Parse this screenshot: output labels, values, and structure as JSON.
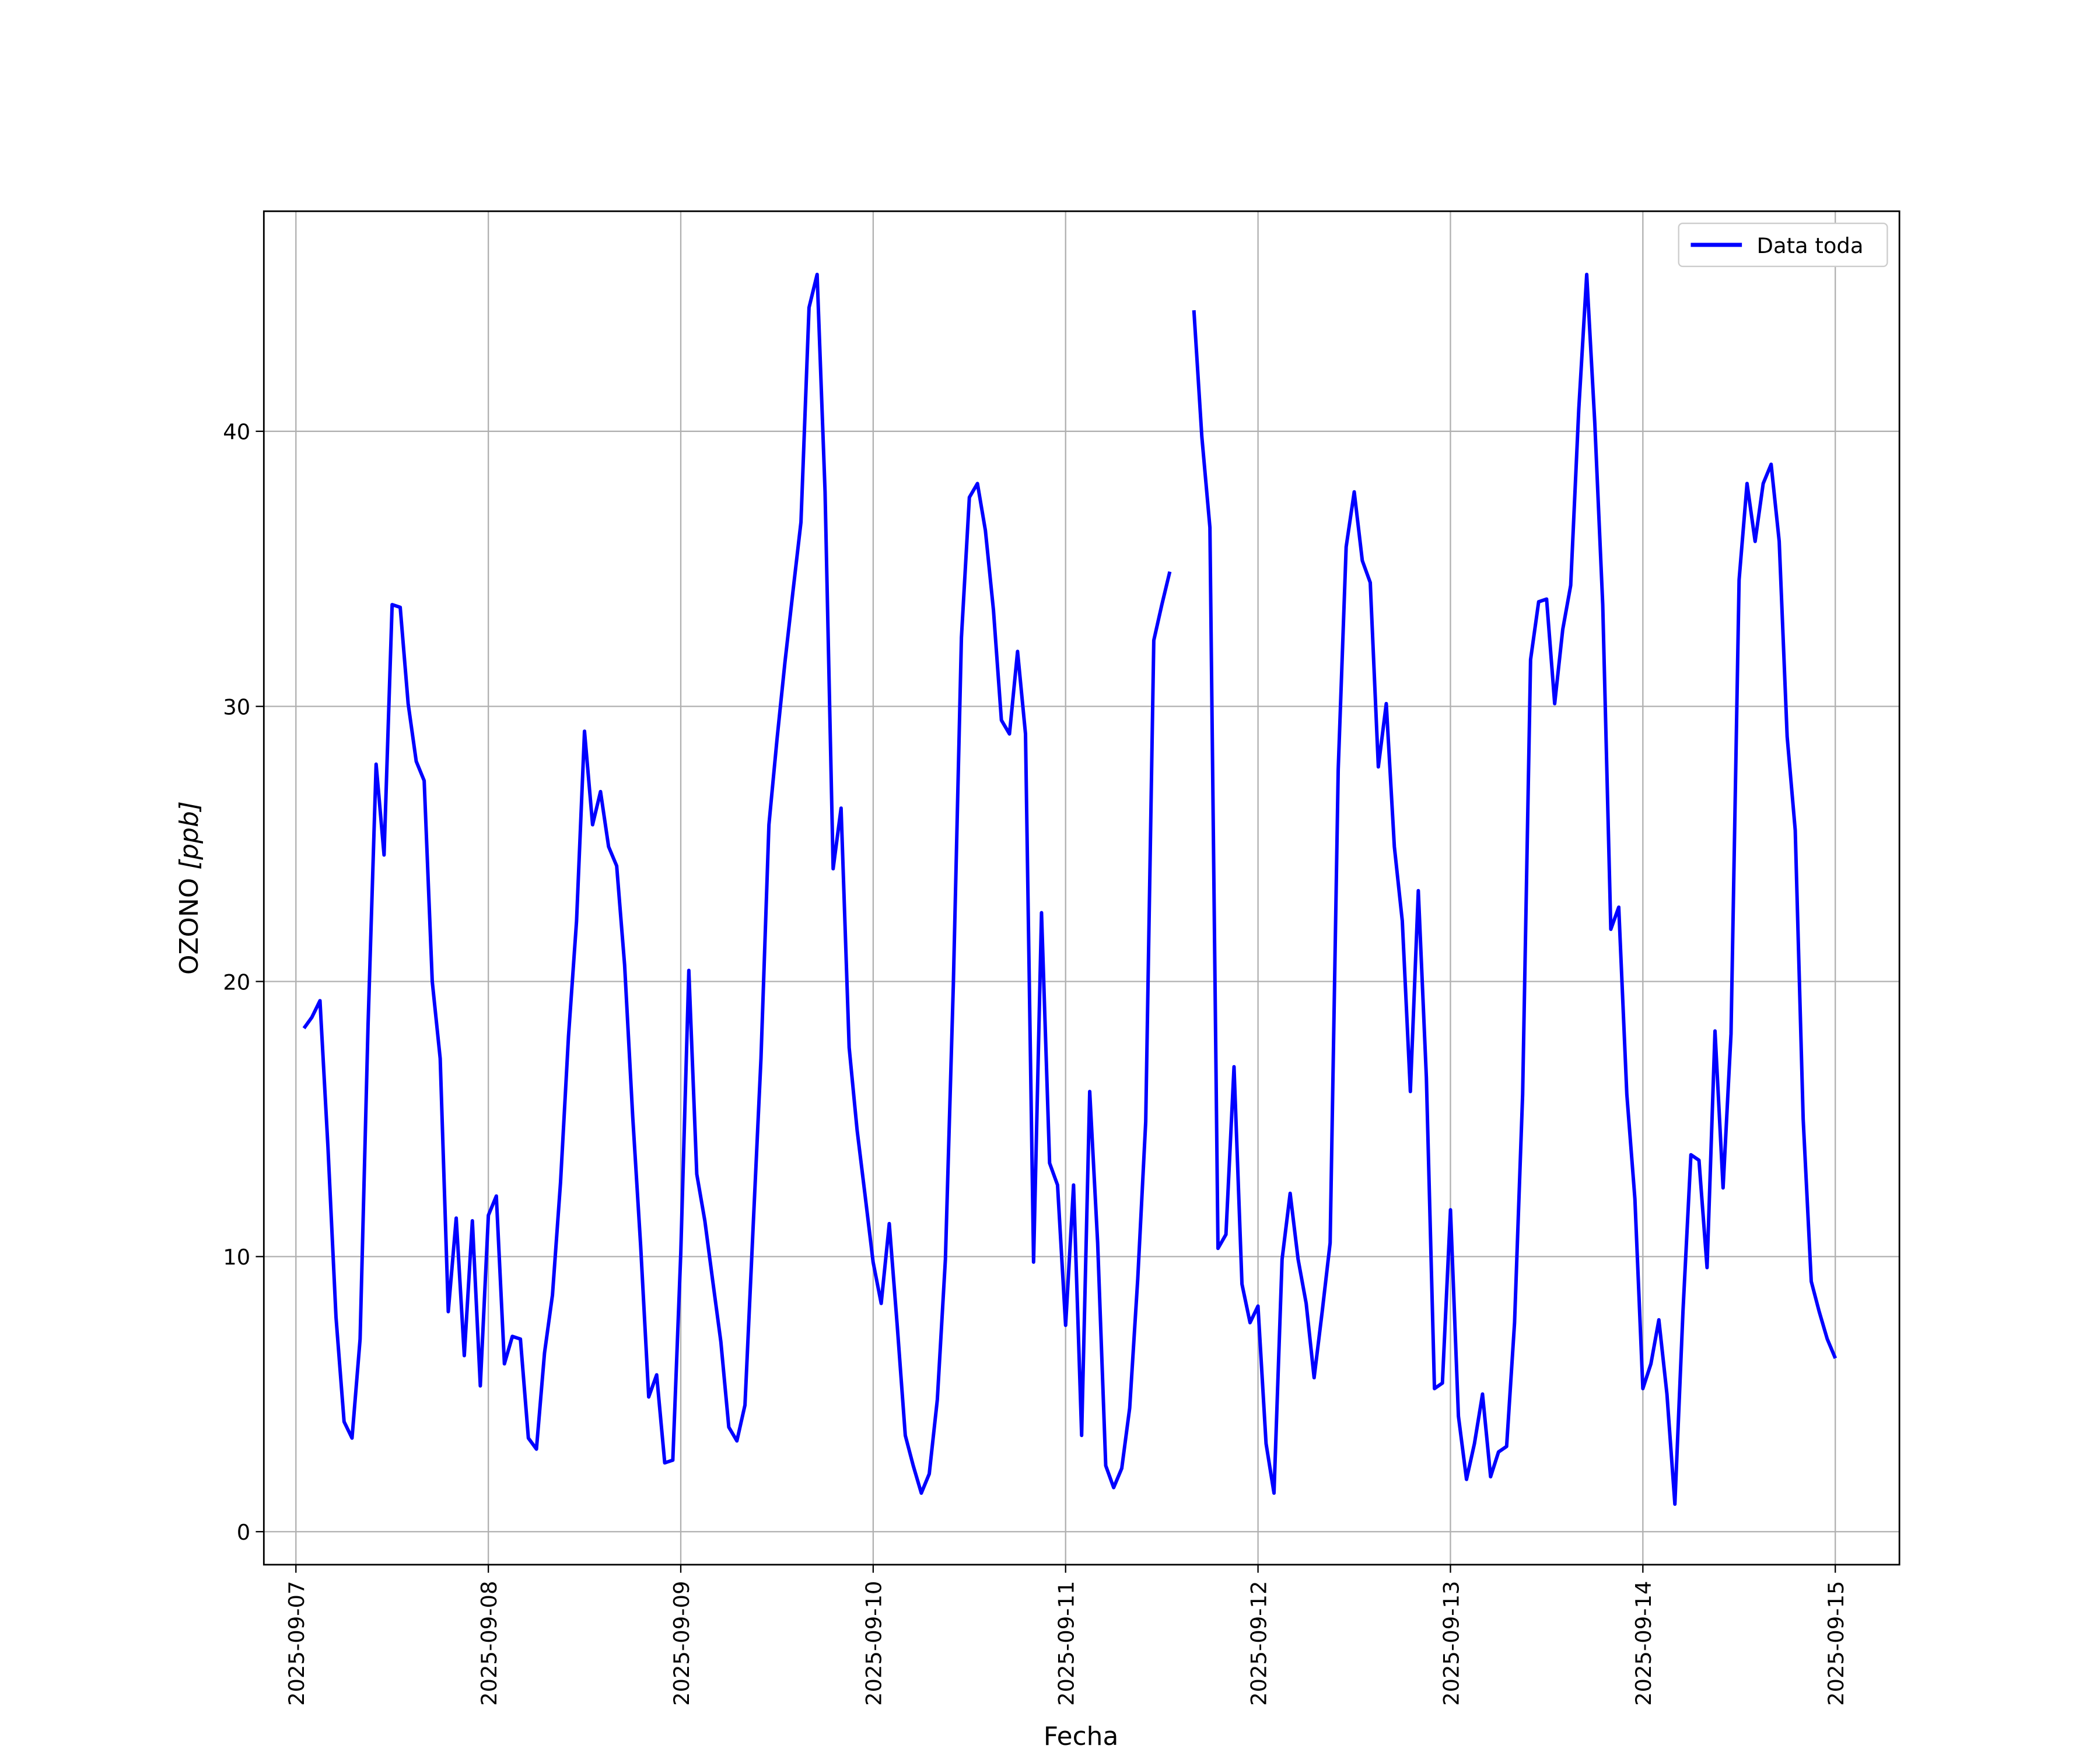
{
  "chart_data": {
    "type": "line",
    "title": "",
    "xlabel": "Fecha",
    "ylabel_main": "OZONO ",
    "ylabel_unit": "[ppb]",
    "ylim": [
      -1.2,
      48
    ],
    "yticks": [
      0,
      10,
      20,
      30,
      40
    ],
    "x_start": "2025-09-07 00:00",
    "x_range_hours": [
      -4,
      200
    ],
    "xtick_labels": [
      "2025-09-07",
      "2025-09-08",
      "2025-09-09",
      "2025-09-10",
      "2025-09-11",
      "2025-09-12",
      "2025-09-13",
      "2025-09-14",
      "2025-09-15"
    ],
    "grid": true,
    "legend_position": "top-right",
    "series": [
      {
        "name": "Data toda",
        "color": "#0000ff",
        "start_hour": 1,
        "interval_hours": 1,
        "values": [
          18.3,
          18.7,
          19.3,
          14,
          7.8,
          4.0,
          3.4,
          7,
          18.4,
          27.9,
          24.6,
          33.7,
          33.6,
          30.1,
          28,
          27.3,
          20,
          17.2,
          8,
          11.4,
          6.4,
          11.3,
          5.3,
          11.5,
          12.2,
          6.1,
          7.1,
          7.0,
          3.4,
          3.0,
          6.5,
          8.6,
          12.7,
          18,
          22.2,
          29.1,
          25.7,
          26.9,
          24.9,
          24.2,
          20.6,
          15.1,
          10.4,
          4.9,
          5.7,
          2.5,
          2.6,
          10.1,
          20.4,
          13,
          11.3,
          9.1,
          6.9,
          3.8,
          3.3,
          4.6,
          10.9,
          17.2,
          25.7,
          28.8,
          31.6,
          34.2,
          36.7,
          44.5,
          45.7,
          37.8,
          24.1,
          26.3,
          17.6,
          14.6,
          12.2,
          9.8,
          8.3,
          11.2,
          7.5,
          3.5,
          2.4,
          1.4,
          2.1,
          4.8,
          9.9,
          19.9,
          32.5,
          37.6,
          38.1,
          36.4,
          33.5,
          29.5,
          29,
          32,
          29,
          9.8,
          22.5,
          13.4,
          12.6,
          7.5,
          12.6,
          3.5,
          16,
          10.5,
          2.4,
          1.6,
          2.3,
          4.5,
          9.2,
          14.9,
          32.4,
          33.7,
          34.9,
          null,
          null,
          44.4,
          39.8,
          36.5,
          10.3,
          10.8,
          16.9,
          9,
          7.6,
          8.2,
          3.2,
          1.4,
          9.9,
          12.3,
          9.9,
          8.3,
          5.6,
          8,
          10.5,
          27.7,
          35.8,
          37.8,
          35.3,
          34.5,
          27.8,
          30.1,
          24.9,
          22.2,
          16,
          23.3,
          16.5,
          5.2,
          5.4,
          11.7,
          4.2,
          1.9,
          3.2,
          5,
          2,
          2.9,
          3.1,
          7.6,
          15.9,
          31.7,
          33.8,
          33.9,
          30.1,
          32.8,
          34.4,
          40.8,
          45.7,
          40.3,
          33.7,
          21.9,
          22.7,
          15.9,
          12.1,
          5.2,
          6.1,
          7.7,
          5,
          1,
          8,
          13.7,
          13.5,
          9.6,
          18.2,
          12.5,
          18.1,
          34.6,
          38.1,
          36,
          38.1,
          38.8,
          36,
          28.9,
          25.5,
          15,
          9.1,
          8,
          7,
          6.3
        ]
      }
    ]
  }
}
